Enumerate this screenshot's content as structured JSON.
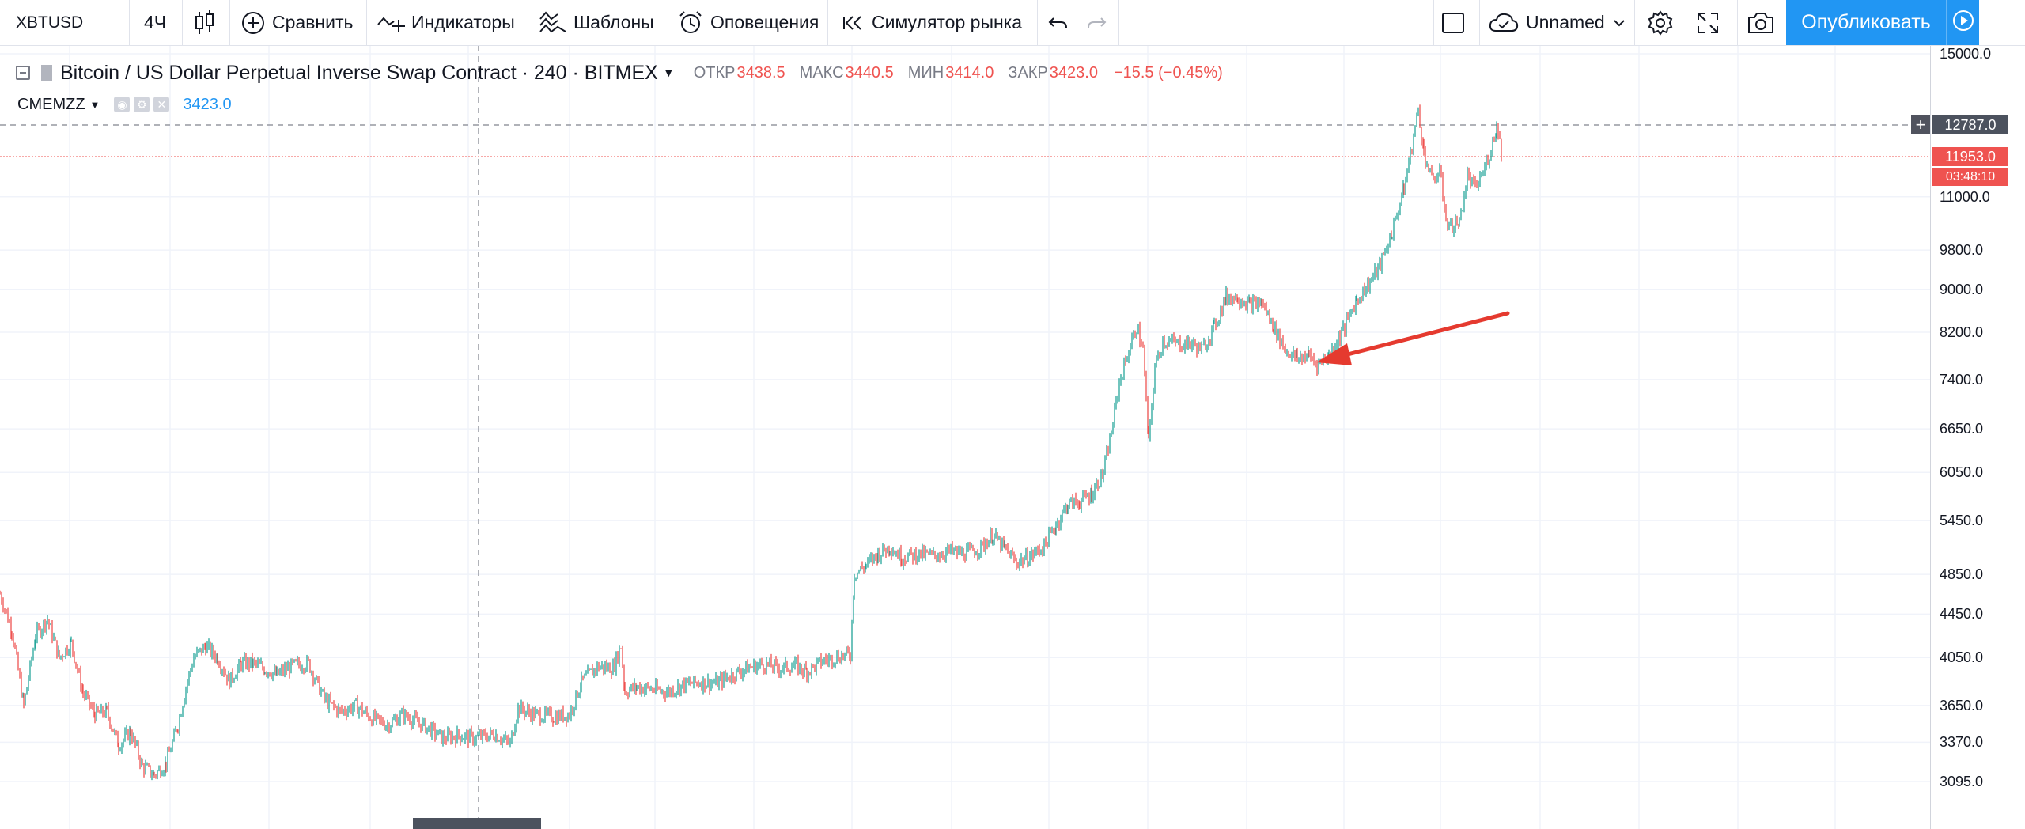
{
  "toolbar": {
    "symbol": "XBTUSD",
    "interval": "4Ч",
    "compare_label": "Сравнить",
    "indicators_label": "Индикаторы",
    "templates_label": "Шаблоны",
    "alerts_label": "Оповещения",
    "replay_label": "Симулятор рынка",
    "layout_name": "Unnamed",
    "publish_label": "Опубликовать",
    "icons": [
      "candles-icon",
      "plus-circle-icon",
      "indicators-icon",
      "templates-icon",
      "alarm-clock-icon",
      "replay-icon",
      "undo-icon",
      "redo-icon",
      "layout-square-icon",
      "cloud-check-icon",
      "chevron-down-icon",
      "gear-icon",
      "fullscreen-icon",
      "camera-icon",
      "play-icon"
    ]
  },
  "legend": {
    "title": "Bitcoin / US Dollar Perpetual Inverse Swap Contract · 240 · BITMEX",
    "open_label": "ОТКР",
    "open": "3438.5",
    "high_label": "МАКС",
    "high": "3440.5",
    "low_label": "МИН",
    "low": "3414.0",
    "close_label": "ЗАКР",
    "close": "3423.0",
    "change": "−15.5 (−0.45%)"
  },
  "study": {
    "name": "CMEMZZ",
    "value": "3423.0"
  },
  "price_axis": {
    "labels": [
      "15000.0",
      "11000.0",
      "9800.0",
      "9000.0",
      "8200.0",
      "7400.0",
      "6650.0",
      "6050.0",
      "5450.0",
      "4850.0",
      "4450.0",
      "4050.0",
      "3650.0",
      "3370.0",
      "3095.0"
    ],
    "crosshair_tag": "12787.0",
    "last_price_tag": "11953.0",
    "countdown_tag": "03:48:10"
  },
  "colors": {
    "up": "#26a69a",
    "down": "#ef5350",
    "accent": "#2196f3",
    "arrow": "#e53a2f",
    "crosshair_tag_bg": "#4c525e",
    "last_price_bg": "#ef5350"
  },
  "chart_data": {
    "type": "line",
    "scale": "log",
    "x_unit": "4h bars",
    "price_range": [
      3000,
      15500
    ],
    "y_ticks": [
      3095,
      3370,
      3650,
      4050,
      4450,
      4850,
      5450,
      6050,
      6650,
      7400,
      8200,
      9000,
      9800,
      11000,
      15000
    ],
    "series": [
      {
        "values": [
          [
            0,
            4650
          ],
          [
            15,
            4300
          ],
          [
            30,
            3650
          ],
          [
            45,
            4250
          ],
          [
            60,
            4400
          ],
          [
            75,
            4050
          ],
          [
            90,
            4180
          ],
          [
            105,
            3750
          ],
          [
            120,
            3580
          ],
          [
            135,
            3600
          ],
          [
            150,
            3350
          ],
          [
            165,
            3450
          ],
          [
            180,
            3200
          ],
          [
            195,
            3140
          ],
          [
            210,
            3220
          ],
          [
            225,
            3500
          ],
          [
            235,
            3800
          ],
          [
            245,
            4050
          ],
          [
            260,
            4150
          ],
          [
            275,
            4050
          ],
          [
            290,
            3850
          ],
          [
            305,
            4000
          ],
          [
            320,
            4000
          ],
          [
            335,
            3950
          ],
          [
            350,
            3900
          ],
          [
            370,
            3980
          ],
          [
            390,
            4000
          ],
          [
            410,
            3700
          ],
          [
            430,
            3600
          ],
          [
            450,
            3650
          ],
          [
            470,
            3550
          ],
          [
            490,
            3500
          ],
          [
            510,
            3580
          ],
          [
            540,
            3480
          ],
          [
            560,
            3400
          ],
          [
            580,
            3420
          ],
          [
            600,
            3400
          ],
          [
            625,
            3430
          ],
          [
            645,
            3360
          ],
          [
            655,
            3630
          ],
          [
            675,
            3580
          ],
          [
            700,
            3560
          ],
          [
            720,
            3580
          ],
          [
            735,
            3840
          ],
          [
            755,
            3970
          ],
          [
            775,
            3960
          ],
          [
            785,
            4150
          ],
          [
            790,
            3760
          ],
          [
            805,
            3800
          ],
          [
            825,
            3780
          ],
          [
            845,
            3760
          ],
          [
            865,
            3820
          ],
          [
            885,
            3840
          ],
          [
            905,
            3830
          ],
          [
            925,
            3900
          ],
          [
            945,
            3960
          ],
          [
            965,
            3990
          ],
          [
            985,
            3960
          ],
          [
            1005,
            3980
          ],
          [
            1020,
            3930
          ],
          [
            1040,
            4020
          ],
          [
            1060,
            4060
          ],
          [
            1075,
            4080
          ],
          [
            1080,
            4850
          ],
          [
            1095,
            4950
          ],
          [
            1110,
            5070
          ],
          [
            1125,
            5150
          ],
          [
            1140,
            5030
          ],
          [
            1160,
            5070
          ],
          [
            1180,
            5050
          ],
          [
            1200,
            5100
          ],
          [
            1220,
            5070
          ],
          [
            1240,
            5140
          ],
          [
            1255,
            5280
          ],
          [
            1270,
            5130
          ],
          [
            1285,
            4980
          ],
          [
            1300,
            5030
          ],
          [
            1320,
            5160
          ],
          [
            1335,
            5400
          ],
          [
            1350,
            5650
          ],
          [
            1365,
            5680
          ],
          [
            1380,
            5780
          ],
          [
            1395,
            6050
          ],
          [
            1405,
            6600
          ],
          [
            1415,
            7350
          ],
          [
            1425,
            7800
          ],
          [
            1437,
            8300
          ],
          [
            1445,
            7900
          ],
          [
            1452,
            6450
          ],
          [
            1460,
            7600
          ],
          [
            1470,
            8050
          ],
          [
            1490,
            8000
          ],
          [
            1505,
            8000
          ],
          [
            1520,
            7900
          ],
          [
            1535,
            8300
          ],
          [
            1550,
            8850
          ],
          [
            1565,
            8850
          ],
          [
            1580,
            8700
          ],
          [
            1595,
            8750
          ],
          [
            1610,
            8300
          ],
          [
            1625,
            7900
          ],
          [
            1640,
            7750
          ],
          [
            1655,
            7800
          ],
          [
            1665,
            7650
          ],
          [
            1680,
            7800
          ],
          [
            1700,
            8300
          ],
          [
            1715,
            8800
          ],
          [
            1730,
            9100
          ],
          [
            1745,
            9500
          ],
          [
            1760,
            10200
          ],
          [
            1775,
            11200
          ],
          [
            1785,
            12300
          ],
          [
            1793,
            13300
          ],
          [
            1800,
            12100
          ],
          [
            1810,
            11400
          ],
          [
            1820,
            11600
          ],
          [
            1830,
            10300
          ],
          [
            1845,
            10400
          ],
          [
            1855,
            11500
          ],
          [
            1865,
            11200
          ],
          [
            1875,
            11600
          ],
          [
            1885,
            12200
          ],
          [
            1892,
            12850
          ],
          [
            1900,
            11950
          ]
        ]
      }
    ],
    "annotation": "arrow"
  }
}
